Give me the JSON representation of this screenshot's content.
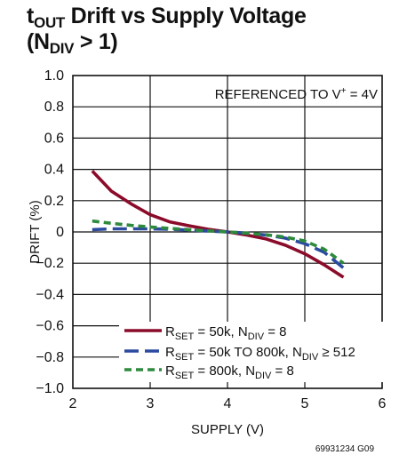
{
  "chart_data": {
    "type": "line",
    "title": {
      "line1_main": "t",
      "line1_sub": "OUT",
      "line1_rest": " Drift vs Supply Voltage",
      "line2_open": "(N",
      "line2_sub": "DIV",
      "line2_rest": " > 1)"
    },
    "xlabel": "SUPPLY (V)",
    "ylabel": "DRIFT (%)",
    "xlim": [
      2,
      6
    ],
    "ylim": [
      -1.0,
      1.0
    ],
    "xticks": [
      "2",
      "3",
      "4",
      "5",
      "6"
    ],
    "yticks": [
      "1.0",
      "0.8",
      "0.6",
      "0.4",
      "0.2",
      "0",
      "−0.2",
      "−0.4",
      "−0.6",
      "−0.8",
      "−1.0"
    ],
    "annotation": {
      "main": "REFERENCED TO V",
      "sup": "+",
      "rest": " = 4V"
    },
    "grid": true,
    "legend_position": "bottom-center",
    "series": [
      {
        "name": "R_SET = 50k, N_DIV = 8",
        "label": {
          "a": "R",
          "a_sub": "SET",
          "b": " = 50k, N",
          "b_sub": "DIV",
          "c": " = 8"
        },
        "color": "#8b0b2a",
        "dash": "solid",
        "x": [
          2.25,
          2.5,
          2.75,
          3.0,
          3.25,
          3.5,
          3.75,
          4.0,
          4.25,
          4.5,
          4.75,
          5.0,
          5.25,
          5.5
        ],
        "y": [
          0.39,
          0.26,
          0.18,
          0.11,
          0.065,
          0.04,
          0.017,
          0.0,
          -0.02,
          -0.045,
          -0.085,
          -0.14,
          -0.21,
          -0.29
        ]
      },
      {
        "name": "R_SET = 50k TO 800k, N_DIV ≥ 512",
        "label": {
          "a": "R",
          "a_sub": "SET",
          "b": " = 50k TO 800k, N",
          "b_sub": "DIV",
          "c": " ≥ 512"
        },
        "color": "#2b4aa0",
        "dash": "long-dash",
        "x": [
          2.25,
          2.5,
          2.75,
          3.0,
          3.25,
          3.5,
          3.75,
          4.0,
          4.25,
          4.5,
          4.75,
          5.0,
          5.25,
          5.5
        ],
        "y": [
          0.015,
          0.02,
          0.02,
          0.02,
          0.017,
          0.012,
          0.006,
          0.0,
          -0.008,
          -0.02,
          -0.04,
          -0.075,
          -0.13,
          -0.23
        ]
      },
      {
        "name": "R_SET = 800k, N_DIV = 8",
        "label": {
          "a": "R",
          "a_sub": "SET",
          "b": " = 800k, N",
          "b_sub": "DIV",
          "c": " = 8"
        },
        "color": "#2e8b3e",
        "dash": "short-dash",
        "x": [
          2.25,
          2.5,
          2.75,
          3.0,
          3.25,
          3.5,
          3.75,
          4.0,
          4.25,
          4.5,
          4.75,
          5.0,
          5.25,
          5.5
        ],
        "y": [
          0.07,
          0.055,
          0.042,
          0.032,
          0.023,
          0.015,
          0.007,
          0.0,
          -0.008,
          -0.018,
          -0.033,
          -0.058,
          -0.11,
          -0.2
        ]
      }
    ]
  },
  "figure_id": "69931234 G09"
}
